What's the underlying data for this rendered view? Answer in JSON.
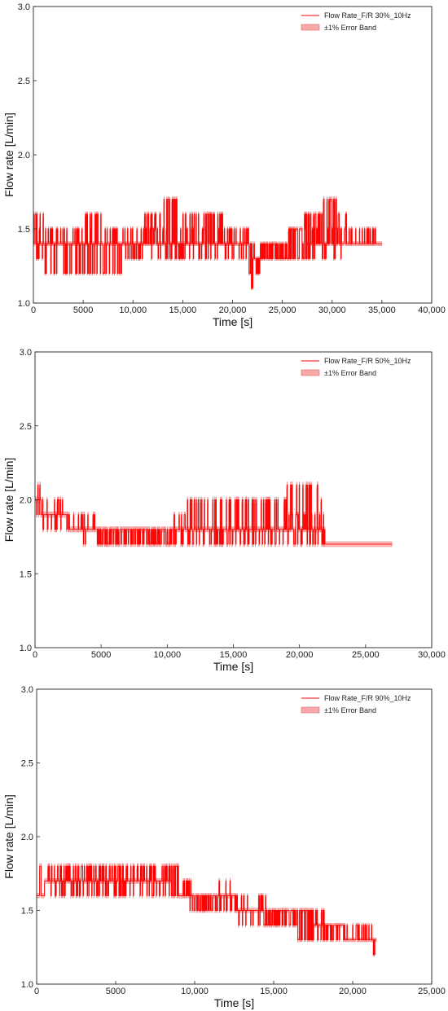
{
  "colors": {
    "line": "#ff0000",
    "band_fill": "#f7a8a8",
    "band_stroke": "#e86868",
    "axis": "#222222"
  },
  "chart_data": [
    {
      "type": "line",
      "xlabel": "Time [s]",
      "ylabel": "Flow rate [L/min]",
      "xlim": [
        0,
        40000
      ],
      "ylim": [
        1.0,
        3.0
      ],
      "x_ticks": [
        0,
        5000,
        10000,
        15000,
        20000,
        25000,
        30000,
        35000,
        40000
      ],
      "x_tick_labels": [
        "0",
        "5000",
        "10,000",
        "15,000",
        "20,000",
        "25,000",
        "30,000",
        "35,000",
        "40,000"
      ],
      "y_ticks": [
        1.0,
        1.5,
        2.0,
        2.5,
        3.0
      ],
      "y_tick_labels": [
        "1.0",
        "1.5",
        "2.0",
        "2.5",
        "3.0"
      ],
      "grid": false,
      "legend_position": "top-right",
      "series": [
        {
          "name": "Flow Rate_F/R 30%_10Hz",
          "x": [
            0,
            2000,
            4000,
            6000,
            8000,
            10000,
            12000,
            14000,
            16000,
            18000,
            20000,
            21500,
            22000,
            22500,
            23000,
            25000,
            26000,
            28000,
            30000,
            32000,
            34000,
            35000
          ],
          "y": [
            1.4,
            1.4,
            1.4,
            1.4,
            1.4,
            1.4,
            1.4,
            1.4,
            1.4,
            1.4,
            1.4,
            1.4,
            1.3,
            1.2,
            1.4,
            1.4,
            1.5,
            1.4,
            1.4,
            1.4,
            1.4,
            1.4
          ],
          "y_min": [
            1.3,
            1.2,
            1.2,
            1.2,
            1.2,
            1.3,
            1.3,
            1.3,
            1.3,
            1.3,
            1.3,
            1.3,
            1.1,
            1.2,
            1.3,
            1.3,
            1.3,
            1.3,
            1.3,
            1.4,
            1.4,
            1.4
          ],
          "y_max": [
            1.6,
            1.5,
            1.5,
            1.6,
            1.5,
            1.5,
            1.6,
            1.7,
            1.6,
            1.6,
            1.5,
            1.5,
            1.4,
            1.3,
            1.4,
            1.4,
            1.5,
            1.6,
            1.7,
            1.5,
            1.5,
            1.4
          ]
        },
        {
          "name": "±1% Error Band",
          "band_percent": 1
        }
      ]
    },
    {
      "type": "line",
      "xlabel": "Time [s]",
      "ylabel": "Flow rate [L/min]",
      "xlim": [
        0,
        30000
      ],
      "ylim": [
        1.0,
        3.0
      ],
      "x_ticks": [
        0,
        5000,
        10000,
        15000,
        20000,
        25000,
        30000
      ],
      "x_tick_labels": [
        "0",
        "5000",
        "10,000",
        "15,000",
        "20,000",
        "25,000",
        "30,000"
      ],
      "y_ticks": [
        1.0,
        1.5,
        2.0,
        2.5,
        3.0
      ],
      "y_tick_labels": [
        "1.0",
        "1.5",
        "2.0",
        "2.5",
        "3.0"
      ],
      "grid": false,
      "legend_position": "top-right",
      "series": [
        {
          "name": "Flow Rate_F/R 50%_10Hz",
          "x": [
            0,
            1000,
            2000,
            3000,
            4000,
            5000,
            6000,
            8000,
            10000,
            11000,
            12000,
            14000,
            16000,
            18000,
            20000,
            21500,
            22000,
            25000,
            27000
          ],
          "y": [
            2.0,
            1.9,
            1.9,
            1.8,
            1.8,
            1.8,
            1.8,
            1.8,
            1.8,
            1.8,
            1.8,
            1.8,
            1.8,
            1.8,
            1.8,
            1.8,
            1.7,
            1.7,
            1.7
          ],
          "y_min": [
            1.9,
            1.8,
            1.8,
            1.8,
            1.7,
            1.7,
            1.7,
            1.7,
            1.7,
            1.7,
            1.7,
            1.7,
            1.7,
            1.7,
            1.7,
            1.7,
            1.7,
            1.7,
            1.7
          ],
          "y_max": [
            2.1,
            2.0,
            2.0,
            1.9,
            1.9,
            1.8,
            1.8,
            1.8,
            1.8,
            1.9,
            2.0,
            2.0,
            2.0,
            2.0,
            2.1,
            2.1,
            1.7,
            1.7,
            1.7
          ]
        },
        {
          "name": "±1% Error Band",
          "band_percent": 1
        }
      ]
    },
    {
      "type": "line",
      "xlabel": "Time [s]",
      "ylabel": "Flow rate [L/min]",
      "xlim": [
        0,
        25000
      ],
      "ylim": [
        1.0,
        3.0
      ],
      "x_ticks": [
        0,
        5000,
        10000,
        15000,
        20000,
        25000
      ],
      "x_tick_labels": [
        "0",
        "5000",
        "10,000",
        "15,000",
        "20,000",
        "25,000"
      ],
      "y_ticks": [
        1.0,
        1.5,
        2.0,
        2.5,
        3.0
      ],
      "y_tick_labels": [
        "1.0",
        "1.5",
        "2.0",
        "2.5",
        "3.0"
      ],
      "grid": false,
      "legend_position": "top-right",
      "series": [
        {
          "name": "Flow Rate_F/R 90%_10Hz",
          "x": [
            0,
            1000,
            2000,
            4000,
            6000,
            8000,
            9000,
            10000,
            11000,
            12000,
            13000,
            14000,
            15000,
            16000,
            17000,
            18000,
            19000,
            20000,
            21000,
            21500
          ],
          "y": [
            1.6,
            1.7,
            1.7,
            1.7,
            1.7,
            1.7,
            1.6,
            1.6,
            1.6,
            1.6,
            1.5,
            1.5,
            1.5,
            1.5,
            1.5,
            1.4,
            1.4,
            1.3,
            1.3,
            1.3
          ],
          "y_min": [
            1.6,
            1.6,
            1.6,
            1.6,
            1.6,
            1.6,
            1.6,
            1.5,
            1.5,
            1.5,
            1.4,
            1.4,
            1.4,
            1.4,
            1.3,
            1.3,
            1.3,
            1.3,
            1.3,
            1.2
          ],
          "y_max": [
            1.8,
            1.8,
            1.8,
            1.8,
            1.8,
            1.8,
            1.8,
            1.6,
            1.6,
            1.7,
            1.6,
            1.6,
            1.5,
            1.5,
            1.5,
            1.5,
            1.4,
            1.4,
            1.4,
            1.3
          ]
        },
        {
          "name": "±1% Error Band",
          "band_percent": 1
        }
      ]
    }
  ]
}
